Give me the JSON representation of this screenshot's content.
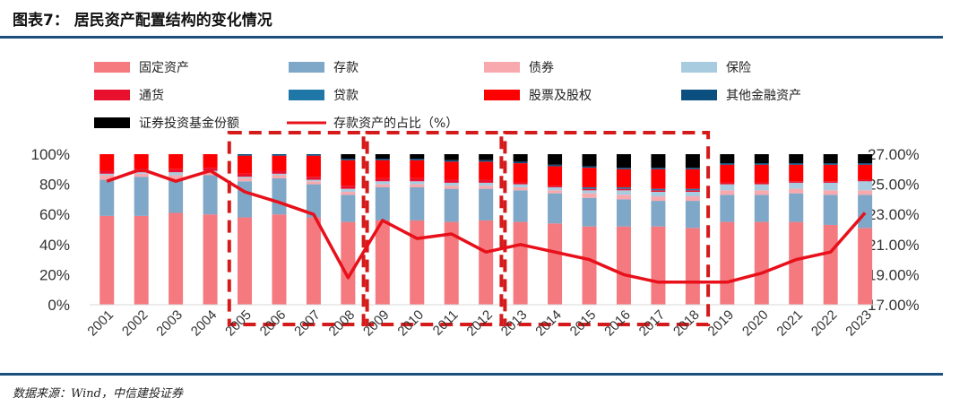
{
  "header": {
    "title": "图表7： 居民资产配置结构的变化情况"
  },
  "footer": {
    "source": "数据来源：Wind，中信建投证券"
  },
  "chart_data": {
    "type": "bar",
    "stacked": true,
    "categories": [
      "2001",
      "2002",
      "2003",
      "2004",
      "2005",
      "2006",
      "2007",
      "2008",
      "2009",
      "2010",
      "2011",
      "2012",
      "2013",
      "2014",
      "2015",
      "2016",
      "2017",
      "2018",
      "2019",
      "2020",
      "2021",
      "2022",
      "2023"
    ],
    "y_left": {
      "ticks": [
        "0%",
        "20%",
        "40%",
        "60%",
        "80%",
        "100%"
      ],
      "range": [
        0,
        100
      ]
    },
    "y_right": {
      "ticks": [
        "17.00%",
        "19.00%",
        "21.00%",
        "23.00%",
        "25.00%",
        "27.00%"
      ],
      "range": [
        17,
        27
      ]
    },
    "series": [
      {
        "name": "固定资产",
        "color": "#f47a80",
        "values": [
          59,
          59,
          61,
          60,
          58,
          60,
          58,
          55,
          56,
          56,
          55,
          56,
          55,
          54,
          52,
          52,
          52,
          51,
          55,
          55,
          55,
          53,
          51
        ]
      },
      {
        "name": "存款",
        "color": "#7fa7c7",
        "values": [
          24,
          26,
          22,
          26,
          24,
          24,
          22,
          18,
          22,
          22,
          22,
          21,
          21,
          20,
          19,
          18,
          17,
          18,
          18,
          18,
          19,
          20,
          22
        ]
      },
      {
        "name": "债券",
        "color": "#f7a9ad",
        "values": [
          3,
          2,
          3,
          2,
          2,
          2,
          2,
          2,
          2,
          2,
          2,
          2,
          2,
          2,
          3,
          3,
          3,
          3,
          3,
          3,
          3,
          3,
          3
        ]
      },
      {
        "name": "保险",
        "color": "#a9cbe0",
        "values": [
          1,
          1,
          2,
          1,
          1,
          1,
          1,
          2,
          2,
          2,
          2,
          2,
          2,
          2,
          2,
          3,
          3,
          3,
          4,
          4,
          4,
          5,
          6
        ]
      },
      {
        "name": "通货",
        "color": "#e8102c",
        "values": [
          2,
          2,
          2,
          2,
          2,
          2,
          2,
          2,
          2,
          2,
          2,
          2,
          1,
          1,
          1,
          1,
          1,
          1,
          1,
          1,
          1,
          1,
          1
        ]
      },
      {
        "name": "贷款",
        "color": "#1f77a8",
        "values": [
          0,
          0,
          0,
          0,
          0,
          0,
          0,
          0,
          0,
          0,
          0,
          0,
          0,
          0,
          1,
          1,
          1,
          1,
          0,
          0,
          0,
          0,
          0
        ]
      },
      {
        "name": "股票及股权",
        "color": "#ff0000",
        "values": [
          11,
          10,
          10,
          9,
          12,
          10,
          14,
          17,
          12,
          12,
          12,
          12,
          13,
          13,
          13,
          12,
          13,
          13,
          12,
          12,
          11,
          11,
          10
        ]
      },
      {
        "name": "其他金融资产",
        "color": "#0b4f80",
        "values": [
          0,
          0,
          0,
          0,
          1,
          1,
          1,
          1,
          1,
          1,
          1,
          1,
          1,
          1,
          1,
          1,
          1,
          1,
          1,
          1,
          1,
          1,
          1
        ]
      },
      {
        "name": "证券投资基金份额",
        "color": "#000000",
        "values": [
          0,
          0,
          0,
          0,
          0,
          0,
          0,
          3,
          3,
          3,
          4,
          4,
          5,
          7,
          8,
          9,
          9,
          9,
          6,
          6,
          6,
          6,
          6
        ]
      }
    ],
    "line": {
      "name": "存款资产的占比（%）",
      "color": "#e8101a",
      "axis": "right",
      "values": [
        25.2,
        26.0,
        25.2,
        25.9,
        24.5,
        23.8,
        23.0,
        18.8,
        22.6,
        21.4,
        21.7,
        20.5,
        21.0,
        20.5,
        20.0,
        19.0,
        18.5,
        18.5,
        18.5,
        19.1,
        20.0,
        20.5,
        23.1
      ]
    },
    "legend_position": "top",
    "annotations": "three dashed red boxes highlighting 2005-2008, 2009-2012, 2013-2018"
  }
}
